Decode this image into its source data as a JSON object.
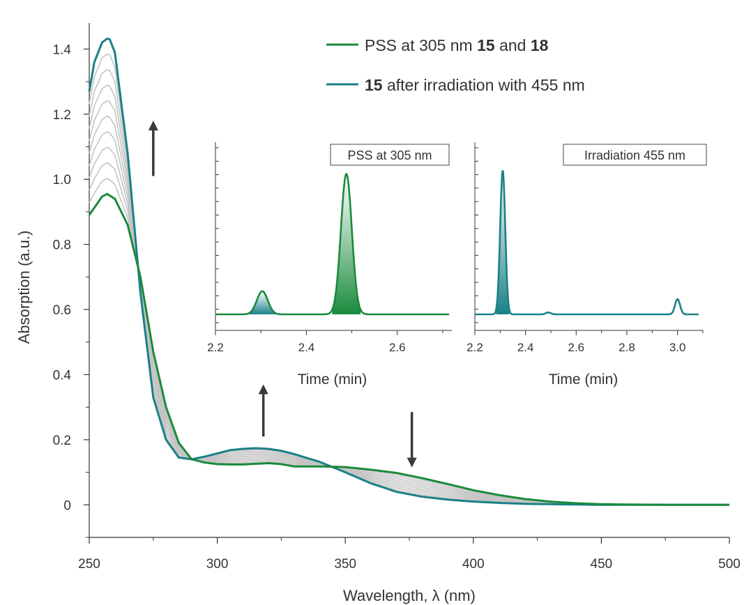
{
  "chart_data": [
    {
      "type": "line",
      "xlabel": "Wavelength, λ (nm)",
      "ylabel": "Absorption (a.u.)",
      "xlim": [
        250,
        500
      ],
      "ylim": [
        -0.1,
        1.48
      ],
      "xticks": [
        250,
        300,
        350,
        400,
        450,
        500
      ],
      "xtick_labels": [
        "250",
        "300",
        "350",
        "400",
        "450",
        "500"
      ],
      "yticks": [
        0,
        0.2,
        0.4,
        0.6,
        0.8,
        1.0,
        1.2,
        1.4
      ],
      "ytick_labels": [
        "0",
        "0.2",
        "0.4",
        "0.6",
        "0.8",
        "1.0",
        "1.2",
        "1.4"
      ],
      "legend_placement": "top-right",
      "colors": {
        "pss": "#1a8a3c",
        "after": "#1a8088",
        "intermediate": "#c4c4c4"
      },
      "series": [
        {
          "name_parts": [
            [
              "PSS at 305 nm ",
              false
            ],
            [
              "15",
              true
            ],
            [
              " and ",
              false
            ],
            [
              "18",
              true
            ]
          ],
          "color": "#1a8a3c",
          "x": [
            250,
            255,
            257,
            260,
            265,
            270,
            275,
            280,
            285,
            290,
            295,
            300,
            305,
            310,
            315,
            320,
            325,
            330,
            340,
            350,
            360,
            370,
            380,
            390,
            400,
            410,
            420,
            430,
            440,
            450,
            460,
            480,
            500
          ],
          "y": [
            0.89,
            0.947,
            0.955,
            0.94,
            0.86,
            0.7,
            0.47,
            0.3,
            0.19,
            0.14,
            0.13,
            0.125,
            0.124,
            0.124,
            0.126,
            0.128,
            0.125,
            0.118,
            0.118,
            0.116,
            0.108,
            0.098,
            0.082,
            0.064,
            0.045,
            0.03,
            0.018,
            0.01,
            0.005,
            0.002,
            0.001,
            0,
            0
          ]
        },
        {
          "name_parts": [
            [
              "15",
              true
            ],
            [
              " after irradiation with 455 nm",
              false
            ]
          ],
          "color": "#1a8088",
          "x": [
            250,
            252,
            255,
            257,
            258,
            260,
            265,
            270,
            275,
            280,
            285,
            290,
            295,
            300,
            305,
            310,
            315,
            320,
            325,
            330,
            340,
            350,
            360,
            370,
            380,
            390,
            400,
            410,
            420,
            430,
            440,
            450,
            460,
            480,
            500
          ],
          "y": [
            1.27,
            1.36,
            1.42,
            1.432,
            1.43,
            1.39,
            1.08,
            0.65,
            0.33,
            0.2,
            0.145,
            0.14,
            0.148,
            0.158,
            0.168,
            0.172,
            0.174,
            0.172,
            0.166,
            0.156,
            0.132,
            0.1,
            0.066,
            0.04,
            0.025,
            0.016,
            0.01,
            0.006,
            0.003,
            0.002,
            0.001,
            0,
            0,
            0,
            0
          ]
        }
      ],
      "intermediate_traces": 9,
      "arrows": [
        {
          "x": 275,
          "y_from": 1.01,
          "y_to": 1.18,
          "direction": "up"
        },
        {
          "x": 318,
          "y_from": 0.21,
          "y_to": 0.37,
          "direction": "up"
        },
        {
          "x": 376,
          "y_from": 0.285,
          "y_to": 0.115,
          "direction": "down"
        }
      ]
    },
    {
      "type": "line",
      "box_label": "PSS at 305 nm",
      "xlabel": "Time (min)",
      "xlim": [
        2.2,
        2.72
      ],
      "xticks": [
        2.2,
        2.4,
        2.6
      ],
      "xtick_labels": [
        "2.2",
        "2.4",
        "2.6"
      ],
      "baseline": 0,
      "peaks": [
        {
          "center": 2.303,
          "height": 0.145,
          "width": 0.012,
          "fill": "#1a8088"
        },
        {
          "center": 2.488,
          "height": 0.88,
          "width": 0.012,
          "fill": "#1a8a3c"
        }
      ],
      "color": "#1a8a3c"
    },
    {
      "type": "line",
      "box_label": "Irradiation 455 nm",
      "xlabel": "Time (min)",
      "xlim": [
        2.2,
        3.1
      ],
      "xticks": [
        2.2,
        2.4,
        2.6,
        2.8,
        3.0
      ],
      "xtick_labels": [
        "2.2",
        "2.4",
        "2.6",
        "2.8",
        "3.0"
      ],
      "baseline": 0,
      "peaks": [
        {
          "center": 2.31,
          "height": 0.9,
          "width": 0.01,
          "fill": "#1a8088"
        },
        {
          "center": 2.49,
          "height": 0.012,
          "width": 0.01,
          "fill": null
        },
        {
          "center": 3.0,
          "height": 0.095,
          "width": 0.01,
          "fill": null
        }
      ],
      "color": "#1a8088"
    }
  ]
}
